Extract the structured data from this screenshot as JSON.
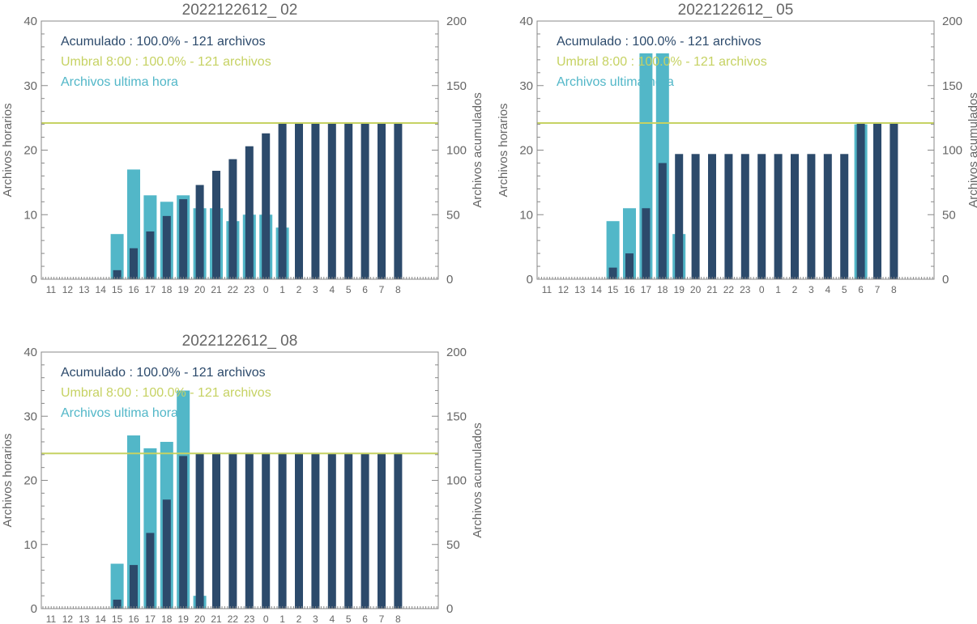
{
  "colors": {
    "accumulated": "#2c4a6b",
    "hourly": "#52b7c8",
    "threshold": "#c6d263",
    "axis": "#888888",
    "text": "#666666"
  },
  "chart_data": [
    {
      "type": "bar",
      "title": "2022122612_ 02",
      "ylabel_left": "Archivos horarios",
      "ylabel_right": "Archivos acumulados",
      "ylim_left": [
        0,
        40
      ],
      "ylim_right": [
        0,
        200
      ],
      "yticks_left": [
        "0",
        "10",
        "20",
        "30",
        "40"
      ],
      "yticks_right": [
        "0",
        "50",
        "100",
        "150",
        "200"
      ],
      "categories": [
        "11",
        "12",
        "13",
        "14",
        "15",
        "16",
        "17",
        "18",
        "19",
        "20",
        "21",
        "22",
        "23",
        "0",
        "1",
        "2",
        "3",
        "4",
        "5",
        "6",
        "7",
        "8"
      ],
      "legend": [
        {
          "text": "Acumulado : 100.0% - 121 archivos",
          "color": "accumulated"
        },
        {
          "text": "Umbral 8:00 : 100.0% - 121 archivos",
          "color": "threshold"
        },
        {
          "text": "Archivos ultima hora",
          "color": "hourly"
        }
      ],
      "threshold": 121,
      "series": [
        {
          "name": "Archivos ultima hora",
          "axis": "left",
          "values": [
            0,
            0,
            0,
            0,
            7,
            17,
            13,
            12,
            13,
            11,
            11,
            9,
            10,
            10,
            8,
            0,
            0,
            0,
            0,
            0,
            0,
            0
          ]
        },
        {
          "name": "Acumulado",
          "axis": "right",
          "values": [
            0,
            0,
            0,
            0,
            7,
            24,
            37,
            49,
            62,
            73,
            84,
            93,
            103,
            113,
            121,
            121,
            121,
            121,
            121,
            121,
            121,
            121
          ]
        }
      ]
    },
    {
      "type": "bar",
      "title": "2022122612_ 05",
      "ylabel_left": "Archivos horarios",
      "ylabel_right": "Archivos acumulados",
      "ylim_left": [
        0,
        40
      ],
      "ylim_right": [
        0,
        200
      ],
      "yticks_left": [
        "0",
        "10",
        "20",
        "30",
        "40"
      ],
      "yticks_right": [
        "0",
        "50",
        "100",
        "150",
        "200"
      ],
      "categories": [
        "11",
        "12",
        "13",
        "14",
        "15",
        "16",
        "17",
        "18",
        "19",
        "20",
        "21",
        "22",
        "23",
        "0",
        "1",
        "2",
        "3",
        "4",
        "5",
        "6",
        "7",
        "8"
      ],
      "legend": [
        {
          "text": "Acumulado : 100.0% - 121 archivos",
          "color": "accumulated"
        },
        {
          "text": "Umbral 8:00 : 100.0% - 121 archivos",
          "color": "threshold"
        },
        {
          "text": "Archivos ultima hora",
          "color": "hourly"
        }
      ],
      "threshold": 121,
      "series": [
        {
          "name": "Archivos ultima hora",
          "axis": "left",
          "values": [
            0,
            0,
            0,
            0,
            9,
            11,
            35,
            35,
            7,
            0,
            0,
            0,
            0,
            0,
            0,
            0,
            0,
            0,
            0,
            24,
            0,
            0
          ]
        },
        {
          "name": "Acumulado",
          "axis": "right",
          "values": [
            0,
            0,
            0,
            0,
            9,
            20,
            55,
            90,
            97,
            97,
            97,
            97,
            97,
            97,
            97,
            97,
            97,
            97,
            97,
            121,
            121,
            121
          ]
        }
      ]
    },
    {
      "type": "bar",
      "title": "2022122612_ 08",
      "ylabel_left": "Archivos horarios",
      "ylabel_right": "Archivos acumulados",
      "ylim_left": [
        0,
        40
      ],
      "ylim_right": [
        0,
        200
      ],
      "yticks_left": [
        "0",
        "10",
        "20",
        "30",
        "40"
      ],
      "yticks_right": [
        "0",
        "50",
        "100",
        "150",
        "200"
      ],
      "categories": [
        "11",
        "12",
        "13",
        "14",
        "15",
        "16",
        "17",
        "18",
        "19",
        "20",
        "21",
        "22",
        "23",
        "0",
        "1",
        "2",
        "3",
        "4",
        "5",
        "6",
        "7",
        "8"
      ],
      "legend": [
        {
          "text": "Acumulado : 100.0% - 121 archivos",
          "color": "accumulated"
        },
        {
          "text": "Umbral 8:00 : 100.0% - 121 archivos",
          "color": "threshold"
        },
        {
          "text": "Archivos ultima hora",
          "color": "hourly"
        }
      ],
      "threshold": 121,
      "series": [
        {
          "name": "Archivos ultima hora",
          "axis": "left",
          "values": [
            0,
            0,
            0,
            0,
            7,
            27,
            25,
            26,
            34,
            2,
            0,
            0,
            0,
            0,
            0,
            0,
            0,
            0,
            0,
            0,
            0,
            0
          ]
        },
        {
          "name": "Acumulado",
          "axis": "right",
          "values": [
            0,
            0,
            0,
            0,
            7,
            34,
            59,
            85,
            119,
            121,
            121,
            121,
            121,
            121,
            121,
            121,
            121,
            121,
            121,
            121,
            121,
            121
          ]
        }
      ]
    }
  ]
}
